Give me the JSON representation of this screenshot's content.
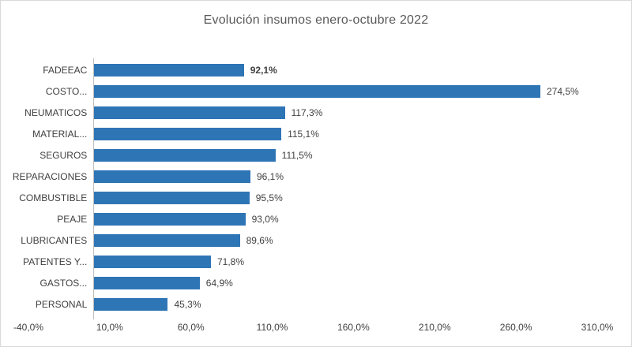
{
  "chart": {
    "title": "Evolución insumos enero-octubre 2022"
  },
  "colors": {
    "bar": "#2e75b6",
    "title_text": "#595959",
    "label_text": "#404040",
    "axis_line": "#bfbfbf",
    "border": "#d9d9d9",
    "background": "#ffffff"
  },
  "chart_data": {
    "type": "bar",
    "orientation": "horizontal",
    "title": "Evolución insumos enero-octubre 2022",
    "categories": [
      "FADEEAC",
      "COSTO...",
      "NEUMATICOS",
      "MATERIAL...",
      "SEGUROS",
      "REPARACIONES",
      "COMBUSTIBLE",
      "PEAJE",
      "LUBRICANTES",
      "PATENTES Y...",
      "GASTOS...",
      "PERSONAL"
    ],
    "values": [
      92.1,
      274.5,
      117.3,
      115.1,
      111.5,
      96.1,
      95.5,
      93.0,
      89.6,
      71.8,
      64.9,
      45.3
    ],
    "value_labels": [
      "92,1%",
      "274,5%",
      "117,3%",
      "115,1%",
      "111,5%",
      "96,1%",
      "95,5%",
      "93,0%",
      "89,6%",
      "71,8%",
      "64,9%",
      "45,3%"
    ],
    "bold_value_index": 0,
    "xlim": [
      -40,
      310
    ],
    "x_ticks": [
      -40,
      10,
      60,
      110,
      160,
      210,
      260,
      310
    ],
    "x_tick_labels": [
      "-40,0%",
      "10,0%",
      "60,0%",
      "110,0%",
      "160,0%",
      "210,0%",
      "260,0%",
      "310,0%"
    ],
    "xlabel": "",
    "ylabel": "",
    "grid": false,
    "legend": false,
    "bar_color": "#2e75b6"
  }
}
